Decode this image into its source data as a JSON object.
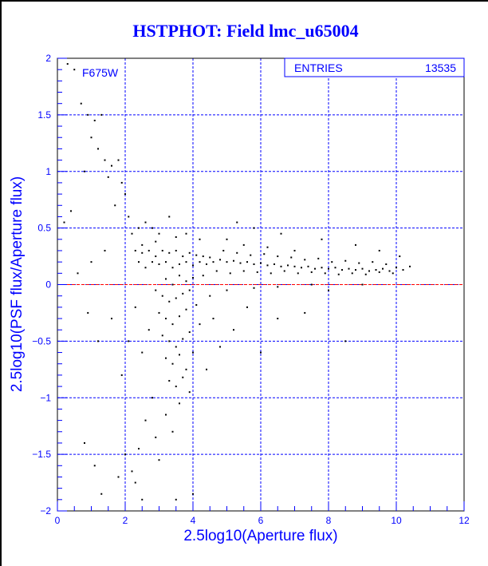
{
  "chart_data": {
    "type": "scatter",
    "title": "HSTPHOT: Field lmc_u65004",
    "xlabel": "2.5log10(Aperture flux)",
    "ylabel": "2.5log10(PSF flux/Aperture flux)",
    "xlim": [
      0,
      12
    ],
    "ylim": [
      -2,
      2
    ],
    "xticks": [
      "0",
      "2",
      "4",
      "6",
      "8",
      "10",
      "12"
    ],
    "yticks": [
      "-2",
      "-1.5",
      "-1",
      "-0.5",
      "0",
      "0.5",
      "1",
      "1.5",
      "2"
    ],
    "grid": true,
    "annotation": "F675W",
    "stats_box": {
      "label": "ENTRIES",
      "value": "13535"
    },
    "reference_line_y": 0,
    "colors": {
      "text": "#0000ff",
      "grid": "#0000ff",
      "points": "#000000",
      "reference_line": "#ff0000"
    },
    "points_note_sample": true,
    "points": [
      [
        0.3,
        1.95
      ],
      [
        0.5,
        1.9
      ],
      [
        0.7,
        1.6
      ],
      [
        0.9,
        1.5
      ],
      [
        1.1,
        1.45
      ],
      [
        1.3,
        1.5
      ],
      [
        1.0,
        1.3
      ],
      [
        1.2,
        1.2
      ],
      [
        1.4,
        1.1
      ],
      [
        1.6,
        1.05
      ],
      [
        1.8,
        1.1
      ],
      [
        0.8,
        1.0
      ],
      [
        1.5,
        0.95
      ],
      [
        1.9,
        0.9
      ],
      [
        2.0,
        0.8
      ],
      [
        0.4,
        0.65
      ],
      [
        1.7,
        0.7
      ],
      [
        2.1,
        0.6
      ],
      [
        2.2,
        0.45
      ],
      [
        2.4,
        0.5
      ],
      [
        2.6,
        0.55
      ],
      [
        2.8,
        0.5
      ],
      [
        3.0,
        0.45
      ],
      [
        3.3,
        0.6
      ],
      [
        2.3,
        0.3
      ],
      [
        2.5,
        0.35
      ],
      [
        2.7,
        0.3
      ],
      [
        2.9,
        0.25
      ],
      [
        3.1,
        0.3
      ],
      [
        3.3,
        0.28
      ],
      [
        3.5,
        0.3
      ],
      [
        3.7,
        0.25
      ],
      [
        3.9,
        0.28
      ],
      [
        4.1,
        0.26
      ],
      [
        4.3,
        0.25
      ],
      [
        4.5,
        0.24
      ],
      [
        2.4,
        0.2
      ],
      [
        2.6,
        0.15
      ],
      [
        2.8,
        0.2
      ],
      [
        3.0,
        0.18
      ],
      [
        3.2,
        0.2
      ],
      [
        3.4,
        0.15
      ],
      [
        3.6,
        0.18
      ],
      [
        3.8,
        0.2
      ],
      [
        4.0,
        0.17
      ],
      [
        4.2,
        0.2
      ],
      [
        4.4,
        0.18
      ],
      [
        4.6,
        0.2
      ],
      [
        4.8,
        0.22
      ],
      [
        5.0,
        0.2
      ],
      [
        5.2,
        0.21
      ],
      [
        5.4,
        0.19
      ],
      [
        5.6,
        0.2
      ],
      [
        5.8,
        0.18
      ],
      [
        6.0,
        0.19
      ],
      [
        6.2,
        0.17
      ],
      [
        6.4,
        0.18
      ],
      [
        6.6,
        0.16
      ],
      [
        6.8,
        0.17
      ],
      [
        7.0,
        0.16
      ],
      [
        7.2,
        0.15
      ],
      [
        7.4,
        0.16
      ],
      [
        7.6,
        0.14
      ],
      [
        7.8,
        0.15
      ],
      [
        8.0,
        0.14
      ],
      [
        8.2,
        0.15
      ],
      [
        8.4,
        0.13
      ],
      [
        8.6,
        0.14
      ],
      [
        8.8,
        0.13
      ],
      [
        9.0,
        0.14
      ],
      [
        9.2,
        0.12
      ],
      [
        9.4,
        0.13
      ],
      [
        9.6,
        0.14
      ],
      [
        9.8,
        0.12
      ],
      [
        10.0,
        0.15
      ],
      [
        10.2,
        0.13
      ],
      [
        10.4,
        0.16
      ],
      [
        4.7,
        0.12
      ],
      [
        5.1,
        0.1
      ],
      [
        5.5,
        0.12
      ],
      [
        5.9,
        0.11
      ],
      [
        6.3,
        0.1
      ],
      [
        6.7,
        0.12
      ],
      [
        7.1,
        0.1
      ],
      [
        7.5,
        0.11
      ],
      [
        7.9,
        0.1
      ],
      [
        8.3,
        0.09
      ],
      [
        8.7,
        0.1
      ],
      [
        9.1,
        0.09
      ],
      [
        9.5,
        0.11
      ],
      [
        9.9,
        0.1
      ],
      [
        4.9,
        0.3
      ],
      [
        5.3,
        0.28
      ],
      [
        5.7,
        0.26
      ],
      [
        6.1,
        0.27
      ],
      [
        6.5,
        0.25
      ],
      [
        6.9,
        0.24
      ],
      [
        7.3,
        0.22
      ],
      [
        7.7,
        0.23
      ],
      [
        8.1,
        0.2
      ],
      [
        8.5,
        0.21
      ],
      [
        8.9,
        0.19
      ],
      [
        9.3,
        0.2
      ],
      [
        9.7,
        0.18
      ],
      [
        5.0,
        0.4
      ],
      [
        5.5,
        0.35
      ],
      [
        6.2,
        0.33
      ],
      [
        7.0,
        0.3
      ],
      [
        3.2,
        0.05
      ],
      [
        3.4,
        0.0
      ],
      [
        3.6,
        0.08
      ],
      [
        3.8,
        0.03
      ],
      [
        4.0,
        0.06
      ],
      [
        4.3,
        0.08
      ],
      [
        2.9,
        -0.05
      ],
      [
        3.1,
        -0.1
      ],
      [
        3.3,
        -0.15
      ],
      [
        3.5,
        -0.12
      ],
      [
        3.7,
        -0.08
      ],
      [
        3.9,
        -0.05
      ],
      [
        3.0,
        -0.25
      ],
      [
        3.2,
        -0.3
      ],
      [
        3.4,
        -0.35
      ],
      [
        3.6,
        -0.28
      ],
      [
        3.8,
        -0.22
      ],
      [
        4.1,
        -0.18
      ],
      [
        4.5,
        -0.1
      ],
      [
        5.0,
        -0.05
      ],
      [
        5.8,
        -0.03
      ],
      [
        6.5,
        -0.02
      ],
      [
        7.5,
        0.0
      ],
      [
        3.1,
        -0.45
      ],
      [
        3.3,
        -0.5
      ],
      [
        3.5,
        -0.55
      ],
      [
        3.7,
        -0.48
      ],
      [
        3.9,
        -0.42
      ],
      [
        4.2,
        -0.35
      ],
      [
        3.2,
        -0.65
      ],
      [
        3.4,
        -0.7
      ],
      [
        3.6,
        -0.62
      ],
      [
        3.8,
        -0.75
      ],
      [
        4.0,
        -0.6
      ],
      [
        3.3,
        -0.85
      ],
      [
        3.5,
        -0.9
      ],
      [
        3.7,
        -0.82
      ],
      [
        3.9,
        -0.95
      ],
      [
        2.8,
        -1.0
      ],
      [
        3.6,
        -1.05
      ],
      [
        3.2,
        -1.15
      ],
      [
        2.6,
        -1.2
      ],
      [
        2.9,
        -1.35
      ],
      [
        3.4,
        -1.3
      ],
      [
        2.4,
        -1.45
      ],
      [
        2.0,
        -1.5
      ],
      [
        2.2,
        -1.65
      ],
      [
        1.8,
        -1.7
      ],
      [
        2.5,
        -1.9
      ],
      [
        1.3,
        -1.85
      ],
      [
        1.1,
        -1.6
      ],
      [
        0.8,
        -1.4
      ],
      [
        3.5,
        -1.9
      ],
      [
        4.0,
        -1.85
      ],
      [
        2.3,
        -1.75
      ],
      [
        3.0,
        -1.55
      ],
      [
        2.5,
        -0.6
      ],
      [
        2.7,
        -0.4
      ],
      [
        2.3,
        -0.2
      ],
      [
        2.1,
        -0.5
      ],
      [
        1.9,
        -0.8
      ],
      [
        1.6,
        -0.3
      ],
      [
        1.2,
        -0.5
      ],
      [
        0.9,
        -0.25
      ],
      [
        1.4,
        0.3
      ],
      [
        1.0,
        0.2
      ],
      [
        0.6,
        0.1
      ],
      [
        0.2,
        0.55
      ],
      [
        4.6,
        -0.3
      ],
      [
        5.2,
        -0.4
      ],
      [
        5.6,
        -0.2
      ],
      [
        6.0,
        -0.6
      ],
      [
        6.5,
        -0.3
      ],
      [
        7.3,
        -0.25
      ],
      [
        8.0,
        -0.05
      ],
      [
        8.5,
        -0.5
      ],
      [
        9.0,
        0.0
      ],
      [
        4.4,
        -0.75
      ],
      [
        4.8,
        -0.55
      ],
      [
        5.3,
        0.55
      ],
      [
        5.8,
        0.5
      ],
      [
        6.6,
        0.45
      ],
      [
        7.8,
        0.4
      ],
      [
        8.8,
        0.35
      ],
      [
        9.5,
        0.3
      ],
      [
        10.1,
        0.25
      ],
      [
        4.2,
        0.4
      ],
      [
        3.8,
        0.45
      ],
      [
        3.5,
        0.42
      ],
      [
        2.9,
        0.38
      ],
      [
        2.5,
        0.28
      ]
    ]
  }
}
